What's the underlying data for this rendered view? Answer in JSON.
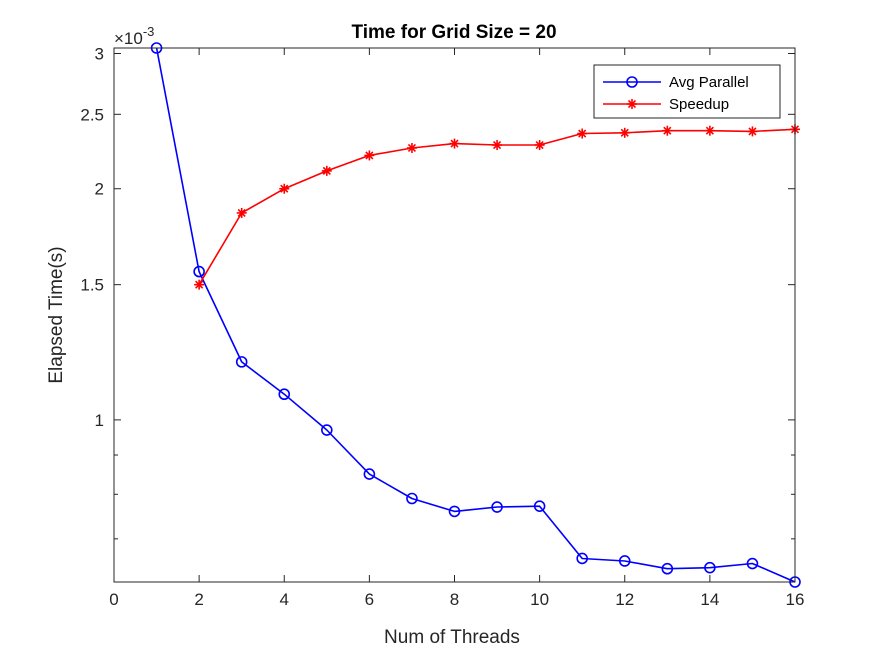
{
  "chart_data": {
    "type": "line",
    "title": "Time for Grid Size = 20",
    "xlabel": "Num of Threads",
    "ylabel": "Elapsed Time(s)",
    "y_exponent_label": "×10",
    "y_exponent_power": "-3",
    "y_scale": "log",
    "xlim": [
      0,
      16
    ],
    "ylim": [
      0.000615,
      0.00305
    ],
    "x_ticks": [
      0,
      2,
      4,
      6,
      8,
      10,
      12,
      14,
      16
    ],
    "y_ticks": [
      {
        "value": 0.001,
        "label": "1"
      },
      {
        "value": 0.0015,
        "label": "1.5"
      },
      {
        "value": 0.002,
        "label": "2"
      },
      {
        "value": 0.0025,
        "label": "2.5"
      },
      {
        "value": 0.003,
        "label": "3"
      }
    ],
    "y_minor_ticks": [
      0.0007,
      0.0008,
      0.0009
    ],
    "grid": false,
    "legend_position": "top-right",
    "series": [
      {
        "name": "Avg Parallel",
        "color": "#0000ff",
        "marker": "circle",
        "x": [
          1,
          2,
          3,
          4,
          5,
          6,
          7,
          8,
          9,
          10,
          11,
          12,
          13,
          14,
          15,
          16
        ],
        "y": [
          0.00305,
          0.00156,
          0.00119,
          0.00108,
          0.00097,
          0.00085,
          0.00079,
          0.00076,
          0.00077,
          0.000772,
          0.00066,
          0.000655,
          0.00064,
          0.000642,
          0.00065,
          0.000615
        ]
      },
      {
        "name": "Speedup",
        "color": "#ff0000",
        "marker": "asterisk",
        "x": [
          2,
          3,
          4,
          5,
          6,
          7,
          8,
          9,
          10,
          11,
          12,
          13,
          14,
          15,
          16
        ],
        "y": [
          0.0015,
          0.00186,
          0.002,
          0.00211,
          0.00221,
          0.00226,
          0.00229,
          0.00228,
          0.00228,
          0.00236,
          0.002365,
          0.00238,
          0.00238,
          0.002375,
          0.00239
        ]
      }
    ]
  }
}
